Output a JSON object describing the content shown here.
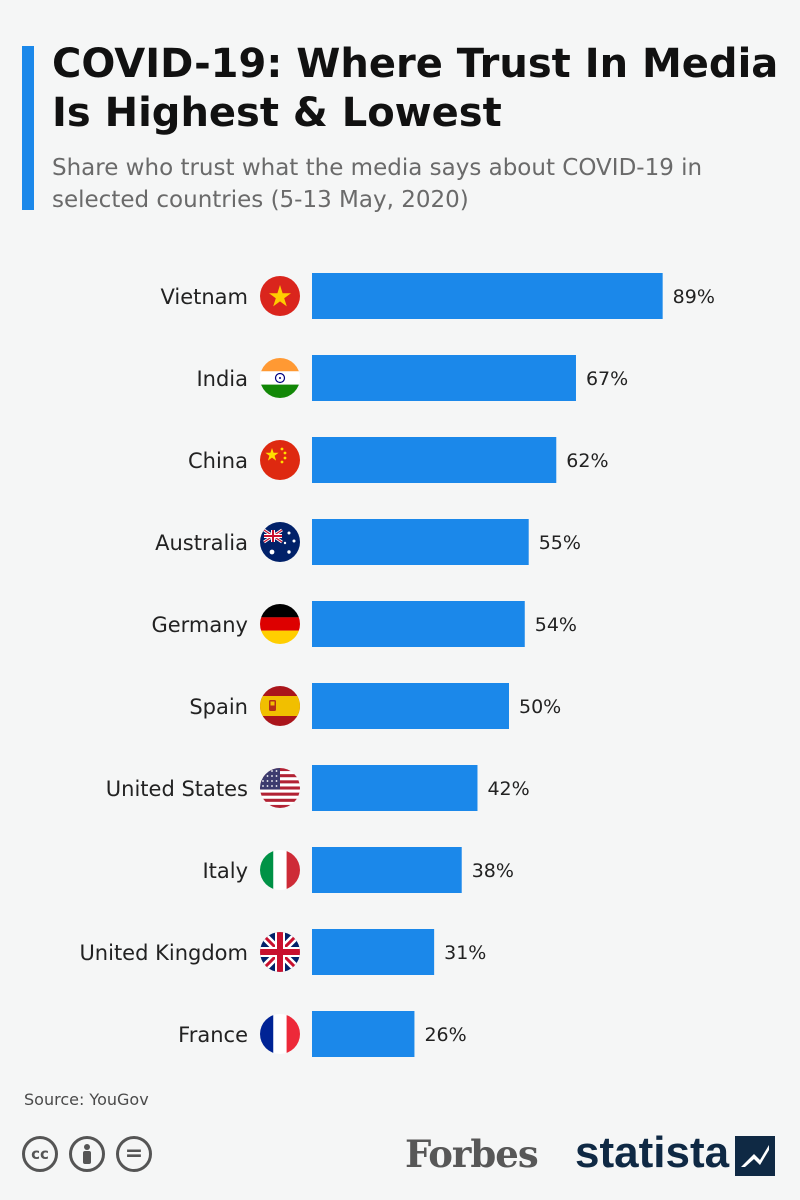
{
  "header": {
    "title": "COVID-19: Where Trust In Media Is Highest & Lowest",
    "subtitle": "Share who trust what the media says about COVID-19 in selected countries (5-13 May, 2020)"
  },
  "chart_data": {
    "type": "bar",
    "orientation": "horizontal",
    "categories": [
      "Vietnam",
      "India",
      "China",
      "Australia",
      "Germany",
      "Spain",
      "United States",
      "Italy",
      "United Kingdom",
      "France"
    ],
    "values": [
      89,
      67,
      62,
      55,
      54,
      50,
      42,
      38,
      31,
      26
    ],
    "value_labels": [
      "89%",
      "67%",
      "62%",
      "55%",
      "54%",
      "50%",
      "42%",
      "38%",
      "31%",
      "26%"
    ],
    "flag_icons": [
      "vietnam-flag-icon",
      "india-flag-icon",
      "china-flag-icon",
      "australia-flag-icon",
      "germany-flag-icon",
      "spain-flag-icon",
      "united-states-flag-icon",
      "italy-flag-icon",
      "united-kingdom-flag-icon",
      "france-flag-icon"
    ],
    "bar_color": "#1b88ea",
    "xlim": [
      0,
      100
    ],
    "grid": false,
    "legend": "none"
  },
  "footer": {
    "source": "Source: YouGov",
    "license_icons": [
      "creative-commons-icon",
      "attribution-icon",
      "no-derivatives-icon"
    ],
    "cc_symbol": "cc",
    "nd_symbol": "=",
    "forbes_logo": "Forbes",
    "statista_logo": "statista"
  },
  "colors": {
    "accent": "#1b88ea",
    "background": "#f5f6f6",
    "statista_navy": "#0f2944"
  }
}
